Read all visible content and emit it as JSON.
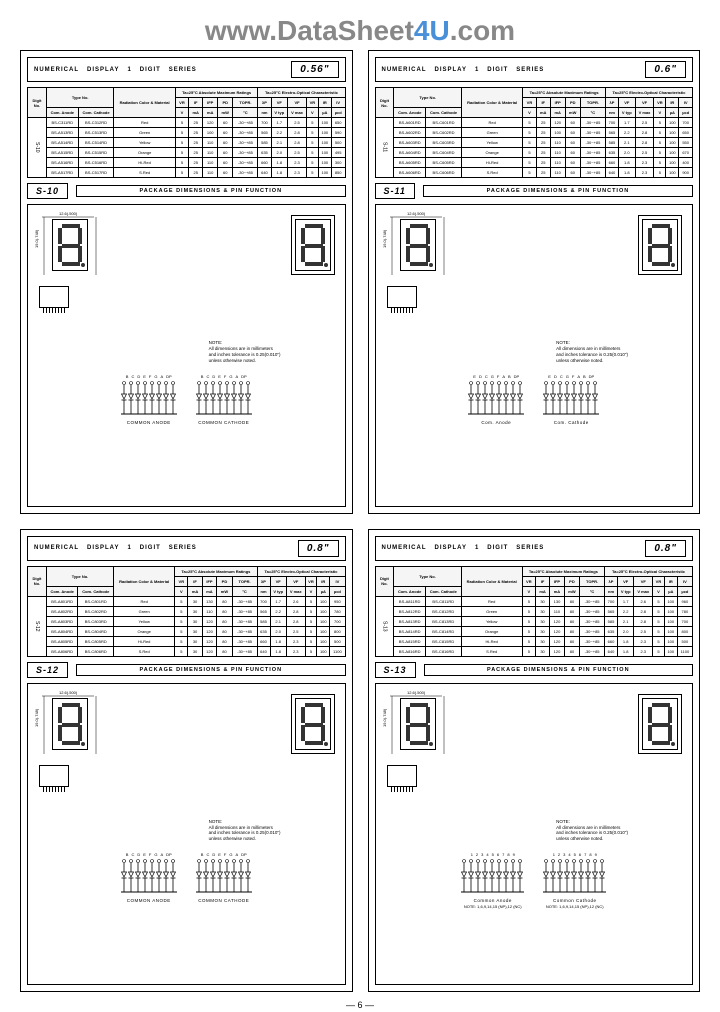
{
  "watermark": {
    "prefix": "www.DataSheet",
    "blue": "4U",
    "suffix": ".com"
  },
  "pageNumber": "— 6 —",
  "sections": [
    {
      "quad": 0,
      "header": {
        "t1": "NUMERICAL",
        "t2": "DISPLAY",
        "t3": "1",
        "t4": "DIGIT",
        "t5": "SERIES",
        "size": "0.56\""
      },
      "pkgId": "S-10",
      "pkgTitle": "PACKAGE DIMENSIONS & PIN FUNCTION",
      "tableHeaders": {
        "groupLeft": "Type No.",
        "col1": "Com. Anode",
        "col2": "Com. Cathode",
        "col3": "Radiation Color & Material",
        "ratingsTitle": "Ta=25°C Absolute Maximum Ratings",
        "charTitle": "Ta=25°C Electro-Optical Characteristic",
        "r1": "VR",
        "r2": "IF",
        "r3": "IFP",
        "r4": "PD",
        "r5": "TOPR.",
        "c1": "λP",
        "c2": "VF",
        "c3": "VF",
        "c4": "VR",
        "c5": "IR",
        "c6": "IV",
        "u_vr": "V",
        "u_if": "mA",
        "u_ifp": "mA",
        "u_pd": "mW",
        "u_topr": "°C",
        "u_lp": "nm",
        "u_vf": "V typ",
        "u_vf2": "V max",
        "u_vr2": "V",
        "u_ir": "µA",
        "u_iv": "µcd"
      },
      "rows": [
        {
          "a": "BS-C311RD",
          "c": "BS-C312RD",
          "col": "Red",
          "vr": "5",
          "if": "25",
          "ifp": "120",
          "pd": "60",
          "topr": "-30~+85",
          "lp": "700",
          "vf": "1.7",
          "vfm": "2.5",
          "vrm": "5",
          "ir": "100",
          "iv": "650"
        },
        {
          "a": "BS-A513RD",
          "c": "BS-C513RD",
          "col": "Green",
          "vr": "5",
          "if": "25",
          "ifp": "100",
          "pd": "60",
          "topr": "-30~+85",
          "lp": "565",
          "vf": "2.2",
          "vfm": "2.8",
          "vrm": "5",
          "ir": "100",
          "iv": "590"
        },
        {
          "a": "BS-A514RD",
          "c": "BS-C514RD",
          "col": "Yellow",
          "vr": "5",
          "if": "25",
          "ifp": "110",
          "pd": "60",
          "topr": "-30~+85",
          "lp": "585",
          "vf": "2.1",
          "vfm": "2.8",
          "vrm": "5",
          "ir": "100",
          "iv": "500"
        },
        {
          "a": "BS-A515RD",
          "c": "BS-C515RD",
          "col": "Orange",
          "vr": "5",
          "if": "25",
          "ifp": "110",
          "pd": "60",
          "topr": "-30~+85",
          "lp": "635",
          "vf": "2.0",
          "vfm": "2.5",
          "vrm": "5",
          "ir": "100",
          "iv": "495"
        },
        {
          "a": "BS-A516RD",
          "c": "BS-C516RD",
          "col": "Hi-Red",
          "vr": "5",
          "if": "25",
          "ifp": "110",
          "pd": "60",
          "topr": "-30~+85",
          "lp": "660",
          "vf": "1.8",
          "vfm": "2.3",
          "vrm": "5",
          "ir": "100",
          "iv": "300"
        },
        {
          "a": "BS-A517RD",
          "c": "BS-C517RD",
          "col": "S.Red",
          "vr": "5",
          "if": "25",
          "ifp": "110",
          "pd": "60",
          "topr": "-30~+85",
          "lp": "640",
          "vf": "1.8",
          "vfm": "2.3",
          "vrm": "5",
          "ir": "100",
          "iv": "850"
        }
      ],
      "pinLabelsA": [
        "B",
        "C",
        "D",
        "E",
        "F",
        "G",
        "A",
        "DP"
      ],
      "pinLabelsC": [
        "B",
        "C",
        "D",
        "E",
        "F",
        "G",
        "A",
        "DP"
      ],
      "captionA": "COMMON ANODE",
      "captionC": "COMMON CATHODE",
      "note": "NOTE:\nAll dimensions are in millimeters\nand inches tolerance is 0.25(0.010\")\nunless otherwise noted.",
      "rowHead": "S-10"
    },
    {
      "quad": 1,
      "header": {
        "t1": "NUMERICAL",
        "t2": "DISPLAY",
        "t3": "1",
        "t4": "DIGIT",
        "t5": "SERIES",
        "size": "0.6\""
      },
      "pkgId": "S-11",
      "pkgTitle": "PACKAGE DIMENSIONS & PIN FUNCTION",
      "rows": [
        {
          "a": "BS-A601RD",
          "c": "BS-C601RD",
          "col": "Red",
          "vr": "5",
          "if": "25",
          "ifp": "120",
          "pd": "60",
          "topr": "-30~+85",
          "lp": "700",
          "vf": "1.7",
          "vfm": "2.5",
          "vrm": "5",
          "ir": "100",
          "iv": "700"
        },
        {
          "a": "BS-A602RD",
          "c": "BS-C602RD",
          "col": "Green",
          "vr": "5",
          "if": "25",
          "ifp": "100",
          "pd": "60",
          "topr": "-30~+85",
          "lp": "565",
          "vf": "2.2",
          "vfm": "2.8",
          "vrm": "5",
          "ir": "100",
          "iv": "650"
        },
        {
          "a": "BS-A603RD",
          "c": "BS-C603RD",
          "col": "Yellow",
          "vr": "5",
          "if": "25",
          "ifp": "110",
          "pd": "60",
          "topr": "-30~+85",
          "lp": "585",
          "vf": "2.1",
          "vfm": "2.8",
          "vrm": "5",
          "ir": "100",
          "iv": "550"
        },
        {
          "a": "BS-A604RD",
          "c": "BS-C604RD",
          "col": "Orange",
          "vr": "5",
          "if": "25",
          "ifp": "110",
          "pd": "60",
          "topr": "-30~+85",
          "lp": "635",
          "vf": "2.0",
          "vfm": "2.5",
          "vrm": "5",
          "ir": "100",
          "iv": "670"
        },
        {
          "a": "BS-A605RD",
          "c": "BS-C605RD",
          "col": "Hi-Red",
          "vr": "5",
          "if": "25",
          "ifp": "110",
          "pd": "60",
          "topr": "-30~+85",
          "lp": "660",
          "vf": "1.8",
          "vfm": "2.3",
          "vrm": "5",
          "ir": "100",
          "iv": "400"
        },
        {
          "a": "BS-A606RD",
          "c": "BS-C606RD",
          "col": "S.Red",
          "vr": "5",
          "if": "25",
          "ifp": "110",
          "pd": "60",
          "topr": "-30~+85",
          "lp": "640",
          "vf": "1.8",
          "vfm": "2.3",
          "vrm": "5",
          "ir": "100",
          "iv": "900"
        }
      ],
      "pinLabelsA": [
        "E",
        "D",
        "C",
        "G",
        "F",
        "A",
        "B",
        "DP"
      ],
      "pinLabelsC": [
        "E",
        "D",
        "C",
        "G",
        "F",
        "A",
        "B",
        "DP"
      ],
      "captionA": "Com. Anode",
      "captionC": "Com. Cathode",
      "note": "NOTE:\nAll dimensions are in millimeters\nand inches tolerance is 0.25(0.010\")\nunless otherwise noted.",
      "rowHead": "S-11"
    },
    {
      "quad": 2,
      "header": {
        "t1": "NUMERICAL",
        "t2": "DISPLAY",
        "t3": "1",
        "t4": "DIGIT",
        "t5": "SERIES",
        "size": "0.8\""
      },
      "pkgId": "S-12",
      "pkgTitle": "PACKAGE DIMENSIONS & PIN FUNCTION",
      "rows": [
        {
          "a": "BS-A801RD",
          "c": "BS-C801RD",
          "col": "Red",
          "vr": "5",
          "if": "30",
          "ifp": "130",
          "pd": "80",
          "topr": "-30~+85",
          "lp": "700",
          "vf": "1.7",
          "vfm": "2.6",
          "vrm": "5",
          "ir": "100",
          "iv": "950"
        },
        {
          "a": "BS-A802RD",
          "c": "BS-C802RD",
          "col": "Green",
          "vr": "5",
          "if": "30",
          "ifp": "110",
          "pd": "80",
          "topr": "-30~+85",
          "lp": "565",
          "vf": "2.2",
          "vfm": "2.8",
          "vrm": "5",
          "ir": "100",
          "iv": "780"
        },
        {
          "a": "BS-A803RD",
          "c": "BS-C803RD",
          "col": "Yellow",
          "vr": "5",
          "if": "30",
          "ifp": "120",
          "pd": "80",
          "topr": "-30~+85",
          "lp": "585",
          "vf": "2.1",
          "vfm": "2.8",
          "vrm": "5",
          "ir": "100",
          "iv": "700"
        },
        {
          "a": "BS-A804RD",
          "c": "BS-C804RD",
          "col": "Orange",
          "vr": "5",
          "if": "30",
          "ifp": "120",
          "pd": "80",
          "topr": "-30~+85",
          "lp": "635",
          "vf": "2.0",
          "vfm": "2.5",
          "vrm": "5",
          "ir": "100",
          "iv": "800"
        },
        {
          "a": "BS-A805RD",
          "c": "BS-C805RD",
          "col": "Hi-Red",
          "vr": "5",
          "if": "30",
          "ifp": "120",
          "pd": "80",
          "topr": "-30~+85",
          "lp": "660",
          "vf": "1.8",
          "vfm": "2.3",
          "vrm": "5",
          "ir": "100",
          "iv": "500"
        },
        {
          "a": "BS-A806RD",
          "c": "BS-C806RD",
          "col": "S.Red",
          "vr": "5",
          "if": "30",
          "ifp": "120",
          "pd": "80",
          "topr": "-30~+85",
          "lp": "640",
          "vf": "1.8",
          "vfm": "2.3",
          "vrm": "5",
          "ir": "100",
          "iv": "1100"
        }
      ],
      "pinLabelsA": [
        "B",
        "C",
        "D",
        "E",
        "F",
        "G",
        "A",
        "DP"
      ],
      "pinLabelsC": [
        "B",
        "C",
        "D",
        "E",
        "F",
        "G",
        "A",
        "DP"
      ],
      "captionA": "COMMON ANODE",
      "captionC": "COMMON CATHODE",
      "note": "NOTE:\nAll dimensions are in millimeters\nand inches tolerance is 0.25(0.010\")\nunless otherwise noted.",
      "rowHead": "S-12"
    },
    {
      "quad": 3,
      "header": {
        "t1": "NUMERICAL",
        "t2": "DISPLAY",
        "t3": "1",
        "t4": "DIGIT",
        "t5": "SERIES",
        "size": "0.8\""
      },
      "pkgId": "S-13",
      "pkgTitle": "PACKAGE DIMENSIONS & PIN FUNCTION",
      "rows": [
        {
          "a": "BS-A811RD",
          "c": "BS-C811RD",
          "col": "Red",
          "vr": "5",
          "if": "30",
          "ifp": "130",
          "pd": "80",
          "topr": "-30~+85",
          "lp": "700",
          "vf": "1.7",
          "vfm": "2.6",
          "vrm": "5",
          "ir": "100",
          "iv": "960"
        },
        {
          "a": "BS-A812RD",
          "c": "BS-C812RD",
          "col": "Green",
          "vr": "5",
          "if": "30",
          "ifp": "110",
          "pd": "80",
          "topr": "-30~+85",
          "lp": "565",
          "vf": "2.2",
          "vfm": "2.8",
          "vrm": "5",
          "ir": "100",
          "iv": "780"
        },
        {
          "a": "BS-A813RD",
          "c": "BS-C813RD",
          "col": "Yellow",
          "vr": "5",
          "if": "30",
          "ifp": "120",
          "pd": "80",
          "topr": "-30~+85",
          "lp": "585",
          "vf": "2.1",
          "vfm": "2.8",
          "vrm": "5",
          "ir": "100",
          "iv": "700"
        },
        {
          "a": "BS-A814RD",
          "c": "BS-C814RD",
          "col": "Orange",
          "vr": "5",
          "if": "30",
          "ifp": "120",
          "pd": "80",
          "topr": "-30~+85",
          "lp": "635",
          "vf": "2.0",
          "vfm": "2.5",
          "vrm": "5",
          "ir": "100",
          "iv": "800"
        },
        {
          "a": "BS-A815RD",
          "c": "BS-C815RD",
          "col": "Hi-Red",
          "vr": "5",
          "if": "30",
          "ifp": "120",
          "pd": "80",
          "topr": "-30~+85",
          "lp": "660",
          "vf": "1.8",
          "vfm": "2.3",
          "vrm": "5",
          "ir": "100",
          "iv": "500"
        },
        {
          "a": "BS-A816RD",
          "c": "BS-C816RD",
          "col": "S.Red",
          "vr": "5",
          "if": "30",
          "ifp": "120",
          "pd": "80",
          "topr": "-30~+85",
          "lp": "640",
          "vf": "1.8",
          "vfm": "2.3",
          "vrm": "5",
          "ir": "100",
          "iv": "1100"
        }
      ],
      "pinLabelsA": [
        "1",
        "2",
        "3",
        "4",
        "5",
        "6",
        "7",
        "8",
        "9"
      ],
      "pinLabelsC": [
        "1",
        "2",
        "3",
        "4",
        "5",
        "6",
        "7",
        "8",
        "9"
      ],
      "captionA": "Common Anode",
      "captionC": "Common Cathode",
      "note": "NOTE:\nAll dimensions are in millimeters\nand inches tolerance is 0.25(0.010\")\nunless otherwise noted.",
      "note2a": "NOTE: 1,6,9,14,15 (NP),12 (NC)",
      "note2c": "NOTE: 1,6,9,14,15 (NP),12 (NC)",
      "rowHead": "S-13"
    }
  ],
  "colors": {
    "border": "#000000",
    "bg": "#ffffff",
    "wm_gray": "#888888",
    "wm_blue": "#4a90d9"
  }
}
